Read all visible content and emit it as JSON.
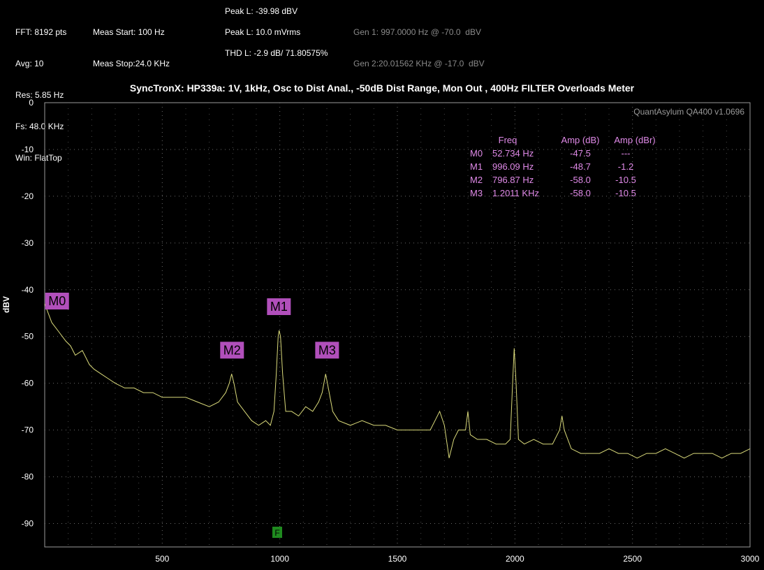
{
  "header": {
    "col1": [
      "FFT: 8192 pts",
      "Avg: 10",
      "Res: 5.85 Hz",
      "Fs: 48.0 KHz",
      "Win: FlatTop"
    ],
    "col2": [
      "Meas Start: 100 Hz",
      "Meas Stop:24.0 KHz"
    ],
    "peak_dbv": "Peak L: -39.98 dBV",
    "peak_mvrms": "Peak L: 10.0 mVrms",
    "thd": "THD L: -2.9 dB/ 71.80575%",
    "gen1": "Gen 1: 997.0000 Hz @ -70.0  dBV",
    "gen2": "Gen 2:20.01562 KHz @ -17.0  dBV"
  },
  "watermark": "QuantAsylum QA400 v1.0696",
  "filter_badge": "F",
  "colors": {
    "trace": "#d9d97a",
    "marker_bg": "#b14fbb",
    "marker_text": "#e08ae8",
    "grid": "#6b6b6b",
    "badge": "#1f8a1f"
  },
  "chart_data": {
    "type": "line",
    "title": "SyncTronX: HP339a: 1V, 1kHz, Osc to Dist Anal., -50dB Dist Range, Mon Out , 400Hz  FILTER  Overloads Meter",
    "xlabel": "",
    "ylabel": "dBV",
    "xlim": [
      0,
      3000
    ],
    "ylim": [
      -95,
      0
    ],
    "x_ticks": [
      500,
      1000,
      1500,
      2000,
      2500,
      3000
    ],
    "y_ticks": [
      0,
      -10,
      -20,
      -30,
      -40,
      -50,
      -60,
      -70,
      -80,
      -90
    ],
    "grid": true,
    "series": [
      {
        "points": [
          [
            0,
            -43
          ],
          [
            30,
            -47
          ],
          [
            60,
            -49
          ],
          [
            90,
            -51
          ],
          [
            110,
            -52
          ],
          [
            130,
            -54
          ],
          [
            160,
            -53
          ],
          [
            190,
            -56
          ],
          [
            210,
            -57
          ],
          [
            240,
            -58
          ],
          [
            270,
            -59
          ],
          [
            300,
            -60
          ],
          [
            340,
            -61
          ],
          [
            380,
            -61
          ],
          [
            420,
            -62
          ],
          [
            460,
            -62
          ],
          [
            500,
            -63
          ],
          [
            550,
            -63
          ],
          [
            600,
            -63
          ],
          [
            650,
            -64
          ],
          [
            700,
            -65
          ],
          [
            740,
            -64
          ],
          [
            770,
            -62
          ],
          [
            785,
            -60
          ],
          [
            795,
            -58
          ],
          [
            805,
            -60
          ],
          [
            820,
            -64
          ],
          [
            850,
            -66
          ],
          [
            880,
            -68
          ],
          [
            910,
            -69
          ],
          [
            940,
            -68
          ],
          [
            960,
            -69
          ],
          [
            975,
            -66
          ],
          [
            985,
            -58
          ],
          [
            993,
            -50
          ],
          [
            997,
            -48.7
          ],
          [
            1003,
            -50
          ],
          [
            1012,
            -58
          ],
          [
            1025,
            -66
          ],
          [
            1050,
            -66
          ],
          [
            1080,
            -67
          ],
          [
            1110,
            -65
          ],
          [
            1140,
            -66
          ],
          [
            1165,
            -64
          ],
          [
            1180,
            -62
          ],
          [
            1195,
            -58
          ],
          [
            1210,
            -62
          ],
          [
            1225,
            -66
          ],
          [
            1250,
            -68
          ],
          [
            1300,
            -69
          ],
          [
            1350,
            -68
          ],
          [
            1400,
            -69
          ],
          [
            1450,
            -69
          ],
          [
            1500,
            -70
          ],
          [
            1550,
            -70
          ],
          [
            1600,
            -70
          ],
          [
            1640,
            -70
          ],
          [
            1660,
            -68
          ],
          [
            1680,
            -66
          ],
          [
            1700,
            -69
          ],
          [
            1720,
            -76
          ],
          [
            1740,
            -72
          ],
          [
            1760,
            -70
          ],
          [
            1790,
            -70
          ],
          [
            1800,
            -66
          ],
          [
            1810,
            -71
          ],
          [
            1840,
            -72
          ],
          [
            1880,
            -72
          ],
          [
            1920,
            -73
          ],
          [
            1960,
            -73
          ],
          [
            1980,
            -72
          ],
          [
            1990,
            -60
          ],
          [
            1997,
            -52.5
          ],
          [
            2005,
            -60
          ],
          [
            2015,
            -72
          ],
          [
            2040,
            -73
          ],
          [
            2080,
            -72
          ],
          [
            2120,
            -73
          ],
          [
            2160,
            -73
          ],
          [
            2190,
            -70
          ],
          [
            2200,
            -67
          ],
          [
            2210,
            -70
          ],
          [
            2240,
            -74
          ],
          [
            2280,
            -75
          ],
          [
            2320,
            -75
          ],
          [
            2360,
            -75
          ],
          [
            2400,
            -74
          ],
          [
            2440,
            -75
          ],
          [
            2480,
            -75
          ],
          [
            2520,
            -76
          ],
          [
            2560,
            -75
          ],
          [
            2600,
            -75
          ],
          [
            2640,
            -74
          ],
          [
            2680,
            -75
          ],
          [
            2720,
            -76
          ],
          [
            2760,
            -75
          ],
          [
            2800,
            -75
          ],
          [
            2840,
            -75
          ],
          [
            2880,
            -76
          ],
          [
            2920,
            -75
          ],
          [
            2960,
            -75
          ],
          [
            3000,
            -74
          ]
        ]
      }
    ],
    "markers": [
      {
        "label": "M0",
        "freq": 52.734,
        "freq_text": "52.734 Hz",
        "amp_db": "-47.5",
        "amp_dbr": "---"
      },
      {
        "label": "M1",
        "freq": 996.09,
        "freq_text": "996.09 Hz",
        "amp_db": "-48.7",
        "amp_dbr": "-1.2"
      },
      {
        "label": "M2",
        "freq": 796.87,
        "freq_text": "796.87 Hz",
        "amp_db": "-58.0",
        "amp_dbr": "-10.5"
      },
      {
        "label": "M3",
        "freq": 1201.1,
        "freq_text": "1.2011 KHz",
        "amp_db": "-58.0",
        "amp_dbr": "-10.5"
      }
    ],
    "marker_table_headers": [
      "Freq",
      "Amp (dB)",
      "Amp (dBr)"
    ]
  }
}
